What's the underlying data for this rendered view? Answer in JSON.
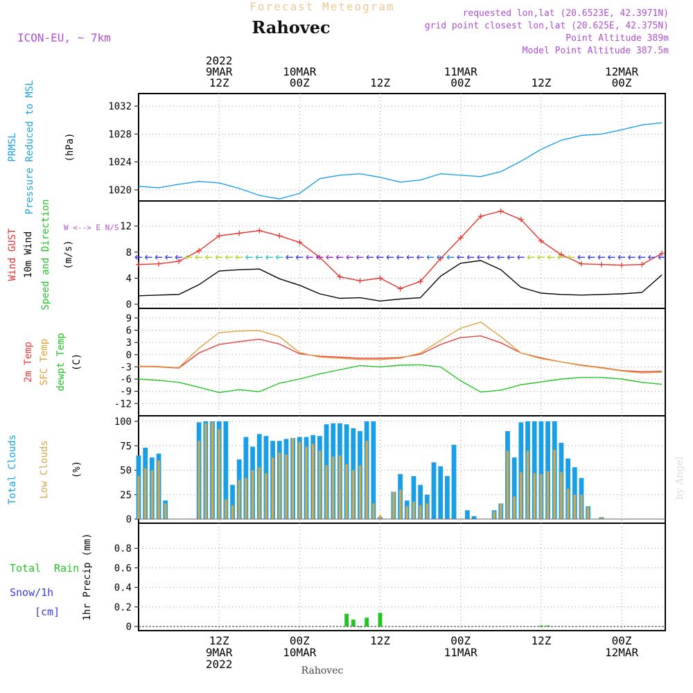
{
  "header": {
    "product": "Forecast Meteogram",
    "location": "Rahovec",
    "model": "ICON-EU, ~ 7km",
    "requested": "requested lon,lat (20.6523E, 42.3971N)",
    "gridpoint": "grid point closest lon,lat (20.625E, 42.375N)",
    "point_alt": "Point Altitude 389m",
    "model_alt": "Model Point Altitude 387.5m",
    "footer": "Rahovec",
    "watermark": "by Angel"
  },
  "colors": {
    "pressure": "#1a9fe6",
    "gust": "#e8302a",
    "wind": "#000000",
    "temp2m": "#e83c3c",
    "sfc": "#e0a03a",
    "dewpt": "#22c422",
    "total_cloud": "#1a9fe6",
    "low_cloud": "#d2a84e",
    "rain": "#22c422",
    "snow": "#3a3ae0",
    "purple": "#b04ed0"
  },
  "chart_data": [
    {
      "type": "line",
      "panel": "pressure",
      "ylabel": [
        "PRMSL",
        "Pressure Reduced to MSL",
        "(hPa)"
      ],
      "yticks": [
        1020,
        1024,
        1028,
        1032
      ],
      "ylim": [
        1019,
        1033
      ],
      "x_hours_from_9MAR00Z": [
        0,
        3,
        6,
        9,
        12,
        15,
        18,
        21,
        24,
        27,
        30,
        33,
        36,
        39,
        42,
        45,
        48,
        51,
        54,
        57,
        60,
        63,
        66,
        69,
        72,
        75,
        78
      ],
      "series": [
        {
          "name": "PRMSL",
          "values": [
            1020.5,
            1020.3,
            1020.8,
            1021.2,
            1021.0,
            1020.2,
            1019.2,
            1018.7,
            1019.5,
            1021.6,
            1022.1,
            1022.3,
            1021.8,
            1021.1,
            1021.4,
            1022.3,
            1022.1,
            1021.9,
            1022.6,
            1024.1,
            1025.8,
            1027.1,
            1027.8,
            1028.0,
            1028.6,
            1029.3,
            1029.6
          ]
        }
      ],
      "note_x": "hours after 9MAR 00Z"
    },
    {
      "type": "line",
      "panel": "wind",
      "ylabel": [
        "Wind GUST",
        "10m Wind",
        "Speed and Direction",
        "(m/s)"
      ],
      "yticks": [
        0,
        4,
        8,
        12
      ],
      "ylim": [
        0,
        15
      ],
      "x_hours_from_9MAR00Z": [
        0,
        3,
        6,
        9,
        12,
        15,
        18,
        21,
        24,
        27,
        30,
        33,
        36,
        39,
        42,
        45,
        48,
        51,
        54,
        57,
        60,
        63,
        66,
        69,
        72,
        75,
        78
      ],
      "series": [
        {
          "name": "Wind GUST",
          "values": [
            6.1,
            6.2,
            6.6,
            8.2,
            10.5,
            10.9,
            11.3,
            10.5,
            9.5,
            7.2,
            4.2,
            3.6,
            4.0,
            2.4,
            3.5,
            7.0,
            10.2,
            13.5,
            14.3,
            13.0,
            9.7,
            7.6,
            6.2,
            6.1,
            6.0,
            6.1,
            7.8
          ]
        },
        {
          "name": "10m Wind",
          "values": [
            1.3,
            1.4,
            1.5,
            3.0,
            5.1,
            5.3,
            5.4,
            3.9,
            2.9,
            1.6,
            0.9,
            1.0,
            0.5,
            0.8,
            1.0,
            4.3,
            6.3,
            6.7,
            5.3,
            2.6,
            1.7,
            1.5,
            1.4,
            1.5,
            1.6,
            1.8,
            4.5
          ]
        }
      ],
      "direction_label": "W <--> E  N/S",
      "note_x": "hours after 9MAR 00Z"
    },
    {
      "type": "line",
      "panel": "temperature",
      "ylabel": [
        "2m Temp",
        "SFC Temp",
        "dewpt Temp",
        "(C)"
      ],
      "yticks": [
        9,
        6,
        3,
        0,
        -3,
        -6,
        -9,
        -12
      ],
      "ylim": [
        -14,
        10
      ],
      "x_hours_from_9MAR00Z": [
        0,
        3,
        6,
        9,
        12,
        15,
        18,
        21,
        24,
        27,
        30,
        33,
        36,
        39,
        42,
        45,
        48,
        51,
        54,
        57,
        60,
        63,
        66,
        69,
        72,
        75,
        78
      ],
      "series": [
        {
          "name": "2m Temp",
          "values": [
            -2.9,
            -3.0,
            -3.3,
            0.4,
            2.5,
            3.2,
            3.8,
            2.6,
            0.2,
            -0.4,
            -0.6,
            -0.9,
            -0.9,
            -0.7,
            0.1,
            2.5,
            4.2,
            4.6,
            2.9,
            0.4,
            -0.8,
            -1.8,
            -2.6,
            -3.2,
            -3.9,
            -4.2,
            -4.1
          ]
        },
        {
          "name": "SFC Temp",
          "values": [
            -2.8,
            -2.9,
            -3.2,
            1.6,
            5.4,
            5.8,
            5.9,
            4.4,
            0.5,
            -0.6,
            -0.9,
            -1.2,
            -1.2,
            -0.9,
            0.4,
            3.5,
            6.5,
            8.0,
            4.4,
            0.4,
            -1.0,
            -1.8,
            -2.7,
            -3.3,
            -4.0,
            -4.5,
            -4.3
          ]
        },
        {
          "name": "dewpt Temp",
          "values": [
            -6.0,
            -6.3,
            -6.8,
            -8.0,
            -9.3,
            -8.6,
            -9.1,
            -7.0,
            -6.0,
            -4.7,
            -3.7,
            -2.7,
            -3.0,
            -2.6,
            -2.5,
            -3.0,
            -6.4,
            -9.2,
            -8.7,
            -7.4,
            -6.7,
            -6.0,
            -5.6,
            -5.6,
            -6.0,
            -6.8,
            -7.3
          ]
        }
      ],
      "note_x": "hours after 9MAR 00Z"
    },
    {
      "type": "bar",
      "panel": "clouds",
      "ylabel": [
        "Total Clouds",
        "Low Clouds",
        "(%)"
      ],
      "yticks": [
        0,
        25,
        50,
        75,
        100
      ],
      "ylim": [
        0,
        100
      ],
      "x_hours_from_9MAR00Z": [
        0,
        1,
        2,
        3,
        4,
        5,
        6,
        7,
        8,
        9,
        10,
        11,
        12,
        13,
        14,
        15,
        16,
        17,
        18,
        19,
        20,
        21,
        22,
        23,
        24,
        25,
        26,
        27,
        28,
        29,
        30,
        31,
        32,
        33,
        34,
        35,
        36,
        37,
        38,
        39,
        40,
        41,
        42,
        43,
        44,
        45,
        46,
        47,
        48,
        49,
        50,
        51,
        52,
        53,
        54,
        55,
        56,
        57,
        58,
        59,
        60,
        61,
        62,
        63,
        64,
        65,
        66,
        67,
        68,
        69,
        70,
        71,
        72,
        73,
        74,
        75,
        76,
        77,
        78
      ],
      "series": [
        {
          "name": "Total Clouds",
          "values": [
            65,
            73,
            63,
            67,
            19,
            0,
            0,
            0,
            0,
            99,
            100,
            100,
            100,
            100,
            35,
            61,
            84,
            74,
            87,
            85,
            80,
            80,
            82,
            83,
            84,
            84,
            86,
            85,
            97,
            98,
            98,
            97,
            93,
            90,
            100,
            100,
            2,
            0,
            28,
            46,
            19,
            44,
            35,
            25,
            58,
            54,
            44,
            76,
            0,
            9,
            3,
            0,
            0,
            9,
            16,
            90,
            63,
            99,
            100,
            100,
            100,
            100,
            100,
            78,
            62,
            53,
            42,
            13,
            0,
            2,
            0,
            0,
            0,
            0,
            0,
            0,
            0,
            0,
            0
          ]
        },
        {
          "name": "Low Clouds",
          "values": [
            44,
            52,
            50,
            60,
            16,
            0,
            0,
            0,
            0,
            80,
            98,
            99,
            92,
            20,
            14,
            40,
            42,
            50,
            53,
            47,
            63,
            68,
            66,
            83,
            79,
            74,
            77,
            70,
            55,
            64,
            65,
            56,
            50,
            55,
            80,
            16,
            4,
            0,
            28,
            30,
            13,
            18,
            14,
            16,
            0,
            0,
            0,
            0,
            0,
            0,
            0,
            0,
            0,
            8,
            16,
            70,
            23,
            48,
            70,
            47,
            46,
            49,
            71,
            48,
            31,
            25,
            25,
            12,
            0,
            2,
            0,
            0,
            0,
            0,
            0,
            0,
            0,
            0,
            0
          ]
        }
      ],
      "note_x": "hours after 9MAR 00Z"
    },
    {
      "type": "bar",
      "panel": "precip",
      "ylabel": [
        "1hr Precip (mm)"
      ],
      "legend": [
        "Total",
        "Rain",
        "Snow/1h",
        "[cm]"
      ],
      "yticks": [
        0,
        0.2,
        0.4,
        0.6,
        0.8
      ],
      "ylim": [
        0,
        1.0
      ],
      "x_hours_from_9MAR00Z": [
        31,
        32,
        33,
        34,
        36,
        60,
        61
      ],
      "series": [
        {
          "name": "Total Rain",
          "values": [
            0.13,
            0.07,
            0.0,
            0.09,
            0.14,
            0.01,
            0.01
          ]
        }
      ],
      "note_x": "hours after 9MAR 00Z"
    }
  ],
  "time_axis": {
    "top_labels": [
      {
        "hour": 12,
        "lines": [
          "2022",
          "9MAR",
          "12Z"
        ]
      },
      {
        "hour": 24,
        "lines": [
          "10MAR",
          "00Z"
        ]
      },
      {
        "hour": 36,
        "lines": [
          "12Z"
        ]
      },
      {
        "hour": 48,
        "lines": [
          "11MAR",
          "00Z"
        ]
      },
      {
        "hour": 60,
        "lines": [
          "12Z"
        ]
      },
      {
        "hour": 72,
        "lines": [
          "12MAR",
          "00Z"
        ]
      }
    ],
    "bottom_labels": [
      {
        "hour": 12,
        "lines": [
          "12Z",
          "9MAR",
          "2022"
        ]
      },
      {
        "hour": 24,
        "lines": [
          "00Z",
          "10MAR"
        ]
      },
      {
        "hour": 36,
        "lines": [
          "12Z"
        ]
      },
      {
        "hour": 48,
        "lines": [
          "00Z",
          "11MAR"
        ]
      },
      {
        "hour": 60,
        "lines": [
          "12Z"
        ]
      },
      {
        "hour": 72,
        "lines": [
          "00Z",
          "12MAR"
        ]
      }
    ]
  }
}
